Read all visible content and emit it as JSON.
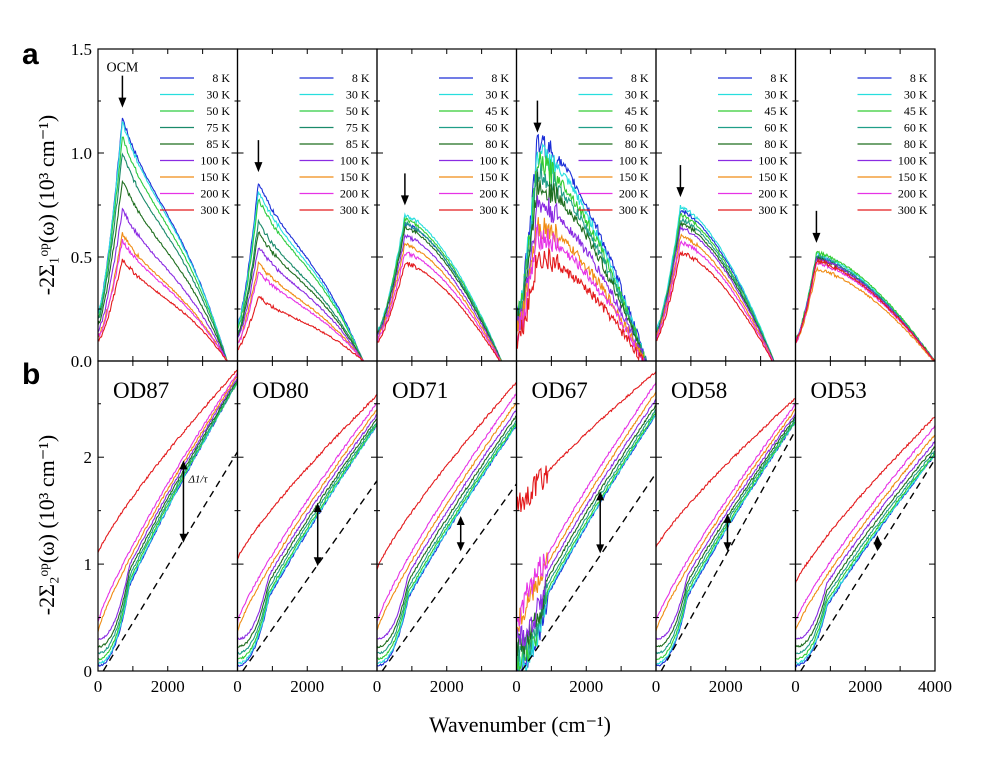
{
  "figure": {
    "panel_a_letter": "a",
    "panel_b_letter": "b",
    "xlabel": "Wavenumber (cm⁻¹)",
    "ylabel_a": "-2Σ₁ᵒᵖ(ω) (10³ cm⁻¹)",
    "ylabel_b": "-2Σ₂ᵒᵖ(ω) (10³ cm⁻¹)",
    "ocm_label": "OCM",
    "delta_label": "Δ1/τ"
  },
  "colors": {
    "8 K": "#1c2fd8",
    "30 K": "#27dede",
    "45 K": "#33cc33",
    "50 K": "#2ecc40",
    "60 K": "#1f9e88",
    "75 K": "#1a8a6a",
    "80 K": "#1f6e1f",
    "85 K": "#1f6e1f",
    "100 K": "#8a2be2",
    "150 K": "#f08c14",
    "200 K": "#e633e6",
    "300 K": "#e31a1c"
  },
  "chart_data": [
    {
      "type": "line",
      "panel": "a",
      "ylim": [
        0,
        1.5
      ],
      "yticks": [
        "0.0",
        "0.5",
        "1.0",
        "1.5"
      ],
      "xlim": [
        0,
        4000
      ],
      "subplots": [
        {
          "legend": [
            "8 K",
            "30 K",
            "50 K",
            "75 K",
            "85 K",
            "100 K",
            "150 K",
            "200 K",
            "300 K"
          ],
          "peak_x": 700,
          "peaks": [
            1.17,
            1.15,
            1.08,
            1.0,
            0.87,
            0.73,
            0.61,
            0.58,
            0.49
          ],
          "zero_x": 3700
        },
        {
          "legend": [
            "8 K",
            "30 K",
            "50 K",
            "75 K",
            "85 K",
            "100 K",
            "150 K",
            "200 K",
            "300 K"
          ],
          "peak_x": 600,
          "peaks": [
            0.86,
            0.82,
            0.78,
            0.67,
            0.62,
            0.55,
            0.47,
            0.43,
            0.31
          ],
          "zero_x": 3600
        },
        {
          "legend": [
            "8 K",
            "30 K",
            "45 K",
            "60 K",
            "80 K",
            "100 K",
            "150 K",
            "200 K",
            "300 K"
          ],
          "peak_x": 800,
          "peaks": [
            0.66,
            0.7,
            0.68,
            0.66,
            0.64,
            0.6,
            0.56,
            0.52,
            0.47
          ],
          "zero_x": 3700
        },
        {
          "legend": [
            "8 K",
            "30 K",
            "45 K",
            "60 K",
            "80 K",
            "100 K",
            "150 K",
            "200 K",
            "300 K"
          ],
          "peak_x": 600,
          "peaks": [
            1.05,
            1.0,
            0.95,
            0.9,
            0.85,
            0.75,
            0.65,
            0.6,
            0.5
          ],
          "zero_x": 3800
        },
        {
          "legend": [
            "8 K",
            "30 K",
            "45 K",
            "60 K",
            "80 K",
            "100 K",
            "150 K",
            "200 K",
            "300 K"
          ],
          "peak_x": 700,
          "peaks": [
            0.72,
            0.74,
            0.7,
            0.68,
            0.66,
            0.64,
            0.6,
            0.57,
            0.52
          ],
          "zero_x": 3500
        },
        {
          "legend": [
            "8 K",
            "30 K",
            "45 K",
            "60 K",
            "80 K",
            "100 K",
            "150 K",
            "200 K",
            "300 K"
          ],
          "peak_x": 600,
          "peaks": [
            0.5,
            0.51,
            0.52,
            0.5,
            0.49,
            0.49,
            0.44,
            0.47,
            0.48
          ],
          "zero_x": 4200
        }
      ]
    },
    {
      "type": "line",
      "panel": "b",
      "ylim": [
        0,
        2.9
      ],
      "yticks": [
        "0",
        "1",
        "2"
      ],
      "xlim": [
        0,
        4000
      ],
      "xticks_first5": [
        "0",
        "2000"
      ],
      "xticks_last": [
        "0",
        "2000",
        "4000"
      ],
      "subplots": [
        {
          "label": "OD87",
          "end300": 2.82,
          "start300": 1.1,
          "end8": 2.7,
          "arrow_x": 2450,
          "arrow": [
            1.97,
            1.2
          ],
          "dash_end": 2.05
        },
        {
          "label": "OD80",
          "end300": 2.58,
          "start300": 1.05,
          "end8": 2.3,
          "arrow_x": 2300,
          "arrow": [
            1.57,
            0.98
          ],
          "dash_end": 1.78
        },
        {
          "label": "OD71",
          "end300": 2.7,
          "start300": 0.95,
          "end8": 2.3,
          "arrow_x": 2400,
          "arrow": [
            1.45,
            1.12
          ],
          "dash_end": 1.75
        },
        {
          "label": "OD67",
          "end300": 2.8,
          "start300": 1.5,
          "end8": 2.4,
          "arrow_x": 2400,
          "arrow": [
            1.68,
            1.1
          ],
          "dash_end": 1.85
        },
        {
          "label": "OD58",
          "end300": 2.55,
          "start300": 1.15,
          "end8": 2.33,
          "arrow_x": 2050,
          "arrow": [
            1.47,
            1.12
          ],
          "dash_end": 2.25
        },
        {
          "label": "OD53",
          "end300": 2.38,
          "start300": 0.82,
          "end8": 2.02,
          "arrow_x": 2350,
          "arrow": [
            1.27,
            1.12
          ],
          "dash_end": 1.98
        }
      ]
    }
  ]
}
